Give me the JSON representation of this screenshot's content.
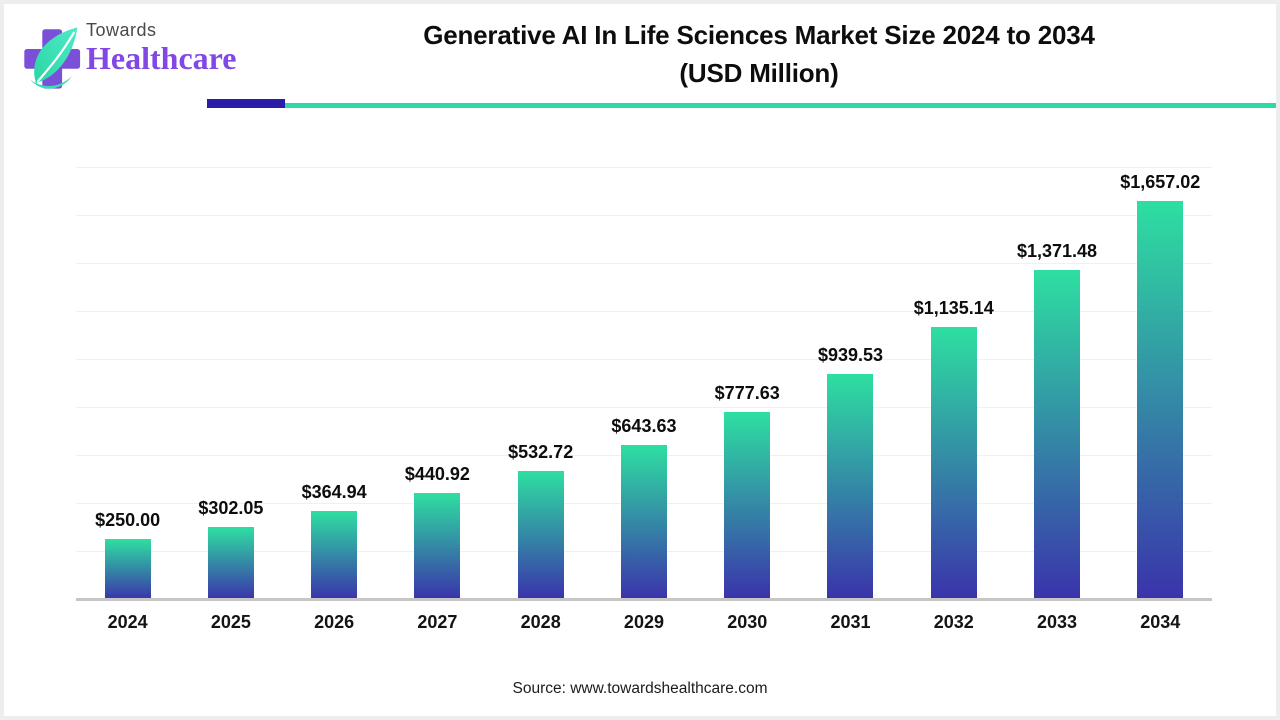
{
  "header": {
    "logo": {
      "brand_top": "Towards",
      "brand_bottom": "Healthcare",
      "cross_color": "#7b4fd8",
      "leaf_color_light": "#4eeac8",
      "leaf_color_dark": "#2bd6a4"
    },
    "title_lines": [
      "Generative AI In Life Sciences Market Size 2024 to 2034",
      "(USD Million)"
    ],
    "accent_purple": "#2b1da8",
    "accent_teal": "#2ed9a8"
  },
  "chart_data": {
    "type": "bar",
    "title": "Generative AI In Life Sciences Market Size 2024 to 2034 (USD Million)",
    "xlabel": "",
    "ylabel": "",
    "categories": [
      "2024",
      "2025",
      "2026",
      "2027",
      "2028",
      "2029",
      "2030",
      "2031",
      "2032",
      "2033",
      "2034"
    ],
    "values": [
      250.0,
      302.05,
      364.94,
      440.92,
      532.72,
      643.63,
      777.63,
      939.53,
      1135.14,
      1371.48,
      1657.02
    ],
    "value_labels": [
      "$250.00",
      "$302.05",
      "$364.94",
      "$440.92",
      "$532.72",
      "$643.63",
      "$777.63",
      "$939.53",
      "$1,135.14",
      "$1,371.48",
      "$1,657.02"
    ],
    "ylim": [
      0,
      1800
    ],
    "grid_step": 200,
    "grid": true,
    "legend": false,
    "bar_gradient_top": "#2edfa1",
    "bar_gradient_bottom": "#3a33ab"
  },
  "footer": {
    "source": "Source: www.towardshealthcare.com"
  }
}
